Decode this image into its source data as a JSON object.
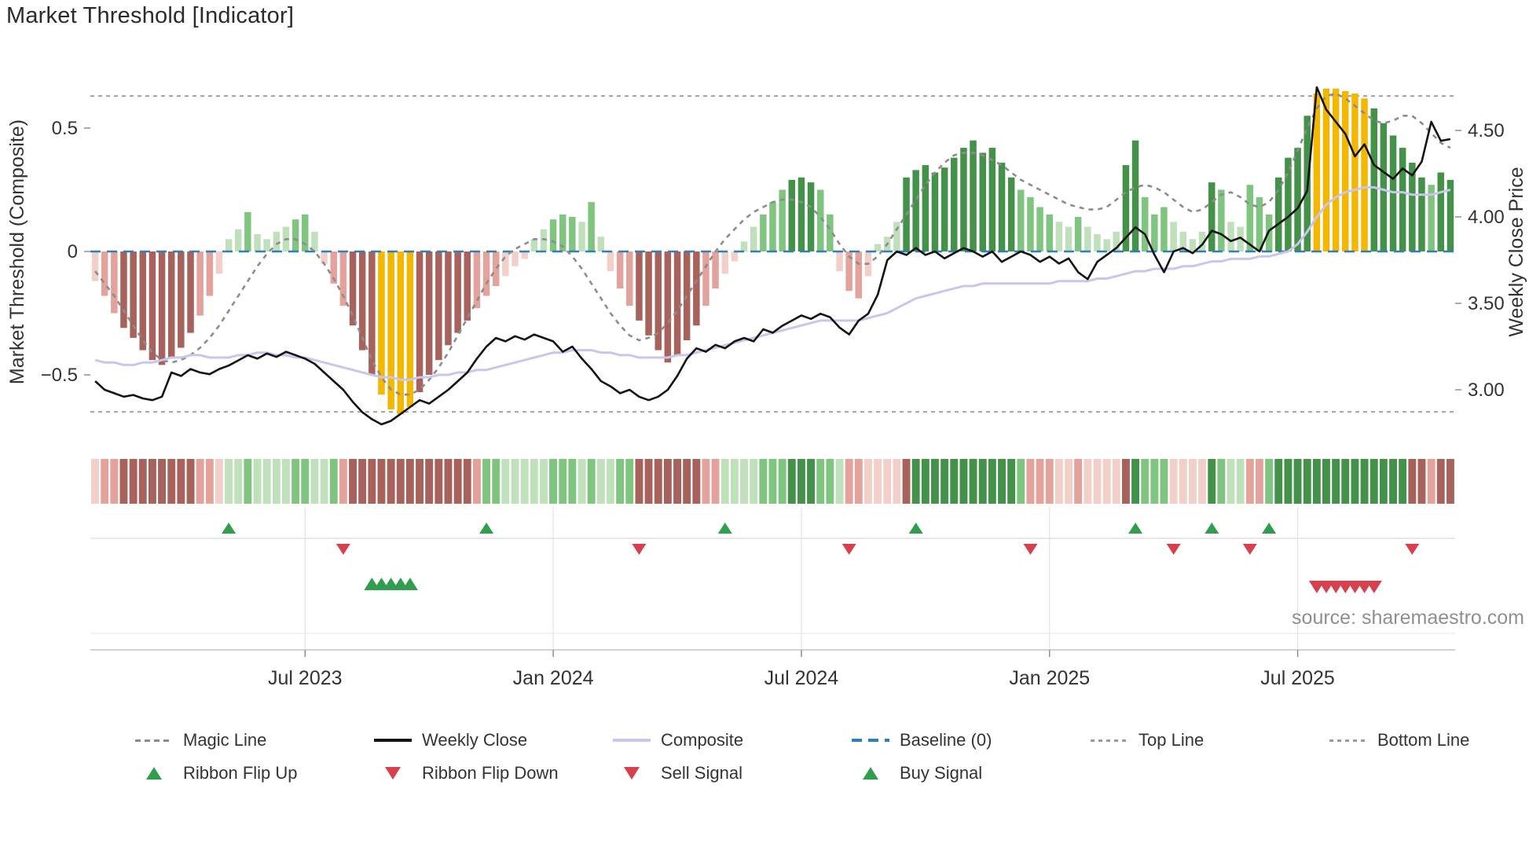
{
  "title": "Market Threshold [Indicator]",
  "source_credit": "source: sharemaestro.com",
  "colors": {
    "bar_pos_light": "#c0e0bb",
    "bar_pos_mid": "#7fc47f",
    "bar_pos_dark": "#44914a",
    "bar_neg_light": "#f3cfca",
    "bar_neg_mid": "#e3a29c",
    "bar_neg_dark": "#a8625c",
    "bar_highlight": "#f3b700",
    "magic_line": "#8c8c8c",
    "weekly_close": "#141414",
    "composite": "#c9c6ec",
    "baseline": "#2f7fbc",
    "top_bottom": "#9a9a9a",
    "flip_up": "#2f9e4f",
    "flip_down": "#d8404d",
    "grid": "#e3e3e3",
    "axis_text": "#333333"
  },
  "legend": {
    "row1": [
      {
        "label": "Magic Line",
        "swatch": "dash-gray"
      },
      {
        "label": "Weekly Close",
        "swatch": "solid-black"
      },
      {
        "label": "Composite",
        "swatch": "solid-lavender"
      },
      {
        "label": "Baseline (0)",
        "swatch": "dash-blue"
      },
      {
        "label": "Top Line",
        "swatch": "dash-light"
      },
      {
        "label": "Bottom Line",
        "swatch": "dash-light"
      }
    ],
    "row2": [
      {
        "label": "Ribbon Flip Up",
        "swatch": "tri-up"
      },
      {
        "label": "Ribbon Flip Down",
        "swatch": "tri-down"
      },
      {
        "label": "Sell Signal",
        "swatch": "tri-down"
      },
      {
        "label": "Buy Signal",
        "swatch": "tri-up"
      }
    ]
  },
  "chart_data": {
    "type": "mixed",
    "title": "Market Threshold [Indicator]",
    "points": 143,
    "x_axis": {
      "tick_indices": [
        22,
        48,
        74,
        100,
        126
      ],
      "tick_labels": [
        "Jul 2023",
        "Jan 2024",
        "Jul 2024",
        "Jan 2025",
        "Jul 2025"
      ]
    },
    "left_axis": {
      "label": "Market Threshold (Composite)",
      "ticks": [
        0.5,
        0,
        -0.5
      ],
      "tick_labels": [
        "0.5",
        "0",
        "−0.5"
      ],
      "range": [
        -0.74,
        0.74
      ]
    },
    "right_axis": {
      "label": "Weekly Close Price",
      "ticks": [
        4.5,
        4.0,
        3.5,
        3.0
      ],
      "tick_labels": [
        "4.50",
        "4.00",
        "3.50",
        "3.00"
      ],
      "range": [
        2.74,
        4.86
      ]
    },
    "reference_lines": {
      "baseline": 0,
      "top_line": 0.63,
      "bottom_line": -0.65
    },
    "bars": {
      "name": "Market Threshold",
      "axis": "left",
      "highlight_indices": [
        30,
        31,
        32,
        33,
        128,
        129,
        130,
        131,
        132,
        133
      ],
      "values": [
        -0.12,
        -0.18,
        -0.25,
        -0.31,
        -0.35,
        -0.4,
        -0.44,
        -0.46,
        -0.43,
        -0.39,
        -0.33,
        -0.26,
        -0.18,
        -0.09,
        0.05,
        0.09,
        0.16,
        0.07,
        0.05,
        0.08,
        0.1,
        0.13,
        0.15,
        0.08,
        -0.05,
        -0.13,
        -0.22,
        -0.3,
        -0.4,
        -0.5,
        -0.58,
        -0.64,
        -0.66,
        -0.63,
        -0.57,
        -0.5,
        -0.44,
        -0.38,
        -0.33,
        -0.28,
        -0.23,
        -0.18,
        -0.14,
        -0.1,
        -0.06,
        -0.03,
        0.05,
        0.09,
        0.13,
        0.15,
        0.14,
        0.12,
        0.2,
        0.06,
        -0.08,
        -0.15,
        -0.22,
        -0.28,
        -0.34,
        -0.4,
        -0.45,
        -0.42,
        -0.36,
        -0.3,
        -0.22,
        -0.15,
        -0.09,
        -0.04,
        0.04,
        0.1,
        0.15,
        0.2,
        0.25,
        0.29,
        0.3,
        0.28,
        0.25,
        0.15,
        -0.08,
        -0.16,
        -0.19,
        -0.1,
        0.03,
        0.06,
        0.12,
        0.3,
        0.33,
        0.35,
        0.32,
        0.34,
        0.38,
        0.42,
        0.45,
        0.4,
        0.42,
        0.36,
        0.3,
        0.25,
        0.22,
        0.18,
        0.15,
        0.12,
        0.1,
        0.14,
        0.1,
        0.07,
        0.05,
        0.08,
        0.35,
        0.45,
        0.22,
        0.15,
        0.18,
        0.12,
        0.08,
        0.05,
        0.08,
        0.28,
        0.25,
        0.12,
        0.1,
        0.27,
        0.22,
        0.15,
        0.3,
        0.38,
        0.42,
        0.55,
        0.64,
        0.66,
        0.66,
        0.65,
        0.64,
        0.62,
        0.58,
        0.52,
        0.47,
        0.42,
        0.36,
        0.3,
        0.27,
        0.32,
        0.29
      ]
    },
    "lines": [
      {
        "name": "Magic Line",
        "axis": "left",
        "style": "dashed",
        "color_key": "magic_line",
        "values": [
          -0.08,
          -0.13,
          -0.18,
          -0.24,
          -0.3,
          -0.36,
          -0.41,
          -0.44,
          -0.45,
          -0.44,
          -0.42,
          -0.39,
          -0.35,
          -0.3,
          -0.24,
          -0.18,
          -0.12,
          -0.06,
          -0.01,
          0.03,
          0.05,
          0.05,
          0.03,
          0.0,
          -0.05,
          -0.11,
          -0.18,
          -0.26,
          -0.35,
          -0.44,
          -0.51,
          -0.56,
          -0.58,
          -0.58,
          -0.56,
          -0.52,
          -0.47,
          -0.41,
          -0.34,
          -0.27,
          -0.2,
          -0.13,
          -0.07,
          -0.02,
          0.01,
          0.03,
          0.05,
          0.05,
          0.04,
          0.02,
          -0.02,
          -0.07,
          -0.13,
          -0.19,
          -0.25,
          -0.3,
          -0.34,
          -0.36,
          -0.35,
          -0.33,
          -0.29,
          -0.24,
          -0.18,
          -0.12,
          -0.06,
          0.0,
          0.05,
          0.09,
          0.13,
          0.16,
          0.18,
          0.2,
          0.21,
          0.21,
          0.2,
          0.18,
          0.14,
          0.09,
          0.03,
          -0.02,
          -0.05,
          -0.05,
          -0.02,
          0.03,
          0.09,
          0.15,
          0.21,
          0.27,
          0.32,
          0.36,
          0.39,
          0.4,
          0.4,
          0.39,
          0.37,
          0.35,
          0.32,
          0.29,
          0.27,
          0.25,
          0.23,
          0.21,
          0.19,
          0.18,
          0.17,
          0.17,
          0.18,
          0.21,
          0.24,
          0.26,
          0.27,
          0.26,
          0.24,
          0.21,
          0.18,
          0.16,
          0.17,
          0.2,
          0.23,
          0.24,
          0.22,
          0.19,
          0.18,
          0.2,
          0.25,
          0.32,
          0.41,
          0.5,
          0.58,
          0.63,
          0.64,
          0.62,
          0.59,
          0.56,
          0.53,
          0.52,
          0.53,
          0.55,
          0.55,
          0.52,
          0.48,
          0.44,
          0.42
        ]
      },
      {
        "name": "Composite",
        "axis": "left",
        "style": "solid",
        "color_key": "composite",
        "values": [
          -0.44,
          -0.45,
          -0.45,
          -0.46,
          -0.46,
          -0.45,
          -0.45,
          -0.44,
          -0.43,
          -0.43,
          -0.42,
          -0.42,
          -0.43,
          -0.43,
          -0.43,
          -0.42,
          -0.42,
          -0.41,
          -0.41,
          -0.42,
          -0.42,
          -0.43,
          -0.43,
          -0.44,
          -0.45,
          -0.46,
          -0.47,
          -0.48,
          -0.49,
          -0.5,
          -0.51,
          -0.51,
          -0.52,
          -0.52,
          -0.51,
          -0.51,
          -0.5,
          -0.5,
          -0.49,
          -0.49,
          -0.48,
          -0.48,
          -0.47,
          -0.46,
          -0.45,
          -0.44,
          -0.43,
          -0.42,
          -0.41,
          -0.41,
          -0.4,
          -0.4,
          -0.4,
          -0.41,
          -0.41,
          -0.42,
          -0.42,
          -0.43,
          -0.43,
          -0.43,
          -0.43,
          -0.42,
          -0.42,
          -0.41,
          -0.4,
          -0.39,
          -0.38,
          -0.37,
          -0.36,
          -0.35,
          -0.34,
          -0.33,
          -0.32,
          -0.31,
          -0.3,
          -0.29,
          -0.28,
          -0.28,
          -0.28,
          -0.28,
          -0.28,
          -0.27,
          -0.26,
          -0.25,
          -0.23,
          -0.21,
          -0.19,
          -0.18,
          -0.17,
          -0.16,
          -0.15,
          -0.14,
          -0.14,
          -0.13,
          -0.13,
          -0.13,
          -0.13,
          -0.13,
          -0.13,
          -0.13,
          -0.13,
          -0.12,
          -0.12,
          -0.12,
          -0.12,
          -0.11,
          -0.11,
          -0.1,
          -0.09,
          -0.08,
          -0.08,
          -0.07,
          -0.07,
          -0.07,
          -0.06,
          -0.06,
          -0.05,
          -0.04,
          -0.04,
          -0.03,
          -0.03,
          -0.03,
          -0.02,
          -0.02,
          -0.01,
          0.0,
          0.03,
          0.08,
          0.14,
          0.19,
          0.22,
          0.24,
          0.25,
          0.26,
          0.26,
          0.25,
          0.24,
          0.24,
          0.23,
          0.23,
          0.23,
          0.24,
          0.25
        ]
      },
      {
        "name": "Weekly Close",
        "axis": "right",
        "style": "solid",
        "color_key": "weekly_close",
        "values": [
          3.05,
          3.0,
          2.98,
          2.96,
          2.97,
          2.95,
          2.94,
          2.96,
          3.1,
          3.08,
          3.12,
          3.1,
          3.09,
          3.12,
          3.14,
          3.17,
          3.2,
          3.18,
          3.21,
          3.19,
          3.22,
          3.2,
          3.18,
          3.15,
          3.1,
          3.05,
          3.0,
          2.93,
          2.87,
          2.83,
          2.8,
          2.82,
          2.86,
          2.9,
          2.94,
          2.92,
          2.96,
          3.0,
          3.05,
          3.1,
          3.18,
          3.25,
          3.3,
          3.28,
          3.31,
          3.29,
          3.32,
          3.3,
          3.28,
          3.22,
          3.25,
          3.18,
          3.12,
          3.05,
          3.02,
          2.98,
          3.0,
          2.96,
          2.94,
          2.96,
          3.0,
          3.08,
          3.18,
          3.24,
          3.22,
          3.26,
          3.24,
          3.28,
          3.3,
          3.28,
          3.35,
          3.33,
          3.37,
          3.4,
          3.43,
          3.41,
          3.44,
          3.42,
          3.36,
          3.32,
          3.4,
          3.44,
          3.55,
          3.75,
          3.8,
          3.78,
          3.82,
          3.78,
          3.8,
          3.76,
          3.79,
          3.82,
          3.8,
          3.77,
          3.8,
          3.74,
          3.77,
          3.8,
          3.78,
          3.74,
          3.77,
          3.73,
          3.76,
          3.68,
          3.64,
          3.74,
          3.78,
          3.82,
          3.88,
          3.94,
          3.9,
          3.78,
          3.68,
          3.8,
          3.82,
          3.79,
          3.84,
          3.92,
          3.9,
          3.86,
          3.88,
          3.84,
          3.8,
          3.92,
          3.96,
          4.0,
          4.05,
          4.15,
          4.75,
          4.62,
          4.55,
          4.48,
          4.35,
          4.42,
          4.3,
          4.26,
          4.22,
          4.28,
          4.24,
          4.32,
          4.55,
          4.44,
          4.45
        ]
      }
    ],
    "signals": {
      "ribbon_flip_up_indices": [
        14,
        41,
        66,
        86,
        109,
        117,
        123
      ],
      "ribbon_flip_down_indices": [
        26,
        57,
        79,
        98,
        113,
        121,
        138
      ],
      "buy_indices": [
        29,
        30,
        31,
        32,
        33
      ],
      "sell_indices": [
        128,
        129,
        130,
        131,
        132,
        133,
        134
      ]
    }
  }
}
